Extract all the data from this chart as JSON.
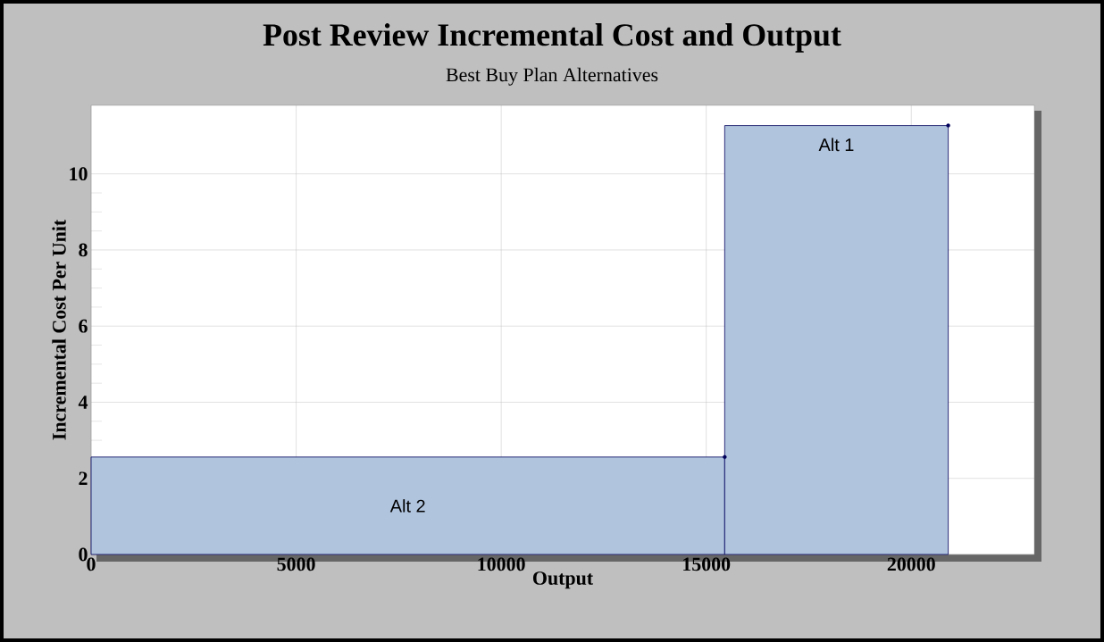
{
  "chart_data": {
    "type": "histogram",
    "title": "Post Review Incremental Cost and Output",
    "subtitle": "Best Buy Plan Alternatives",
    "xlabel": "Output",
    "ylabel": "Incremental Cost Per Unit",
    "bins": [
      0,
      15450,
      20900
    ],
    "series": [
      {
        "color": "#b0c4de",
        "values": [
          2.56,
          11.27
        ]
      },
      {
        "type": "scatter",
        "color": "#00005a",
        "marker": "circle",
        "x": [
          15450,
          20900
        ],
        "values": [
          2.56,
          11.27
        ]
      }
    ],
    "annotations": [
      "Alt 2",
      "Alt 1"
    ],
    "xlim": [
      0,
      23000
    ],
    "xticks": [
      0,
      5000,
      10000,
      15000,
      20000
    ],
    "ylim": [
      0,
      11.8
    ],
    "yticks": [
      0,
      2,
      4,
      6,
      8,
      10
    ],
    "grid": true
  }
}
